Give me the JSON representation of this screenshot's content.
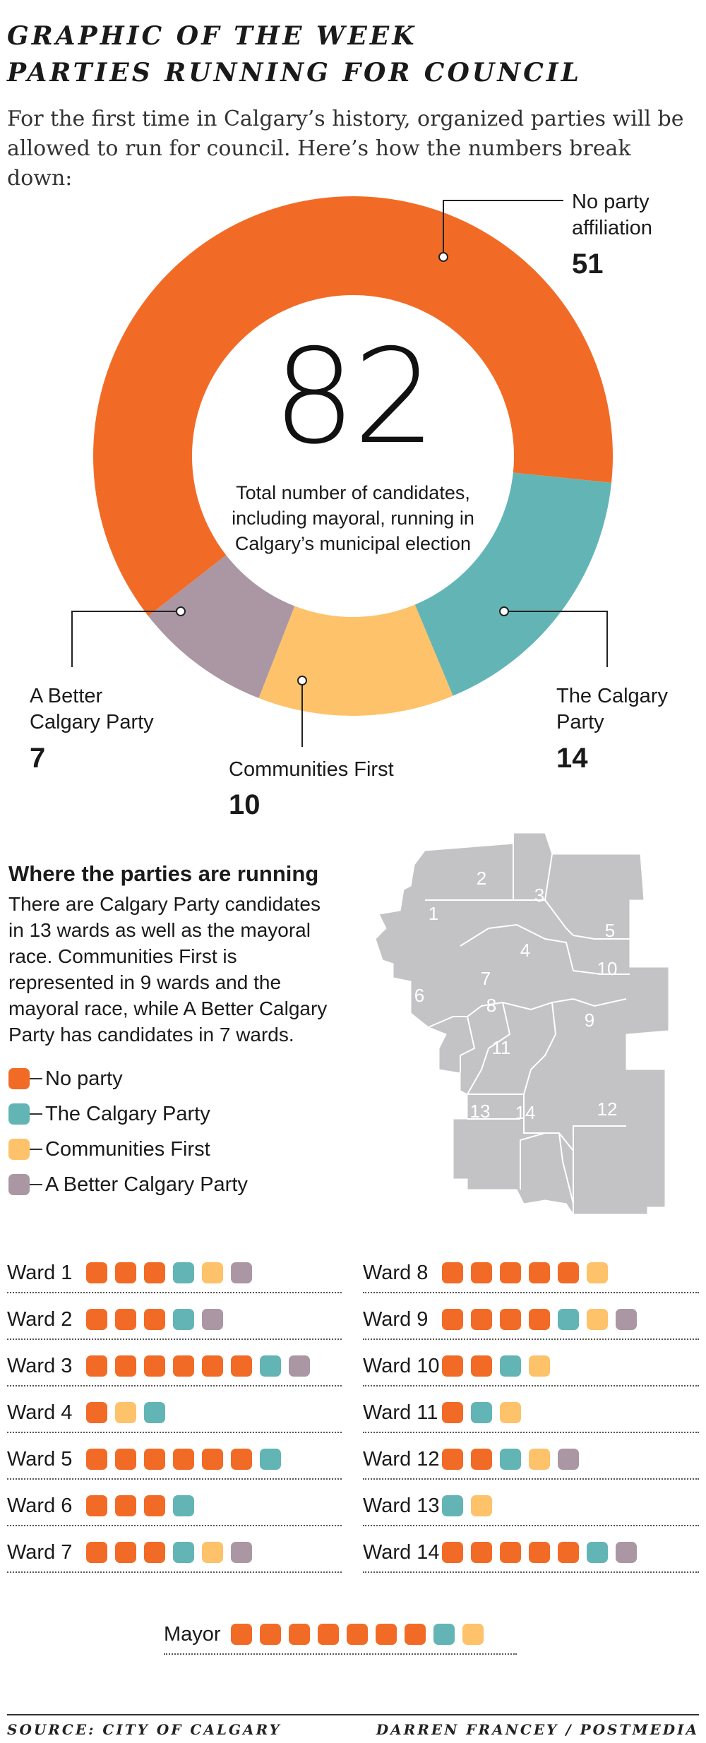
{
  "header": {
    "line1": "GRAPHIC OF THE WEEK",
    "line2": "PARTIES RUNNING FOR COUNCIL",
    "intro": "For the first time in Calgary’s history, organized parties will be allowed to run for council. Here’s how the numbers break down:"
  },
  "chart_data": {
    "type": "pie",
    "total": "82",
    "total_description": "Total number of candidates, including mayoral, running in Calgary’s municipal election",
    "slices": [
      {
        "label_line1": "No party",
        "label_line2": "affiliation",
        "value": 51,
        "color": "#f26b26"
      },
      {
        "label_line1": "The Calgary",
        "label_line2": "Party",
        "value": 14,
        "color": "#63b5b5"
      },
      {
        "label_line1": "Communities First",
        "label_line2": "",
        "value": 10,
        "color": "#fdc26a"
      },
      {
        "label_line1": "A Better",
        "label_line2": "Calgary Party",
        "value": 7,
        "color": "#ab97a4"
      }
    ]
  },
  "section": {
    "title": "Where the parties are running",
    "body": "There are Calgary Party candidates in 13 wards as well as the mayoral race. Communities First is represented in 9 wards and the mayoral race, while A Better Calgary Party has candidates in 7 wards."
  },
  "legend": [
    {
      "label": "No party",
      "color": "#f26b26"
    },
    {
      "label": "The Calgary Party",
      "color": "#63b5b5"
    },
    {
      "label": "Communities First",
      "color": "#fdc26a"
    },
    {
      "label": "A Better Calgary Party",
      "color": "#ab97a4"
    }
  ],
  "map": {
    "fill": "#c3c3c6",
    "labels": [
      "1",
      "2",
      "3",
      "4",
      "5",
      "6",
      "7",
      "8",
      "9",
      "10",
      "11",
      "12",
      "13",
      "14"
    ]
  },
  "wards": [
    {
      "name": "Ward 1",
      "counts": [
        3,
        1,
        1,
        1
      ]
    },
    {
      "name": "Ward 2",
      "counts": [
        3,
        1,
        0,
        1
      ]
    },
    {
      "name": "Ward 3",
      "counts": [
        6,
        1,
        0,
        1
      ]
    },
    {
      "name": "Ward 4",
      "counts": [
        1,
        1,
        1,
        0
      ],
      "order": [
        0,
        2,
        1
      ]
    },
    {
      "name": "Ward 5",
      "counts": [
        6,
        1,
        0,
        0
      ]
    },
    {
      "name": "Ward 6",
      "counts": [
        3,
        1,
        0,
        0
      ]
    },
    {
      "name": "Ward 7",
      "counts": [
        3,
        1,
        1,
        1
      ]
    },
    {
      "name": "Ward 8",
      "counts": [
        5,
        0,
        1,
        0
      ]
    },
    {
      "name": "Ward 9",
      "counts": [
        4,
        1,
        1,
        1
      ]
    },
    {
      "name": "Ward 10",
      "counts": [
        2,
        1,
        1,
        0
      ]
    },
    {
      "name": "Ward 11",
      "counts": [
        1,
        1,
        1,
        0
      ]
    },
    {
      "name": "Ward 12",
      "counts": [
        2,
        1,
        1,
        1
      ]
    },
    {
      "name": "Ward 13",
      "counts": [
        0,
        1,
        1,
        0
      ]
    },
    {
      "name": "Ward 14",
      "counts": [
        5,
        1,
        0,
        1
      ]
    }
  ],
  "mayor": {
    "name": "Mayor",
    "counts": [
      7,
      1,
      1,
      0
    ]
  },
  "footer": {
    "source": "SOURCE: CITY OF CALGARY",
    "credit": "DARREN FRANCEY / POSTMEDIA"
  }
}
